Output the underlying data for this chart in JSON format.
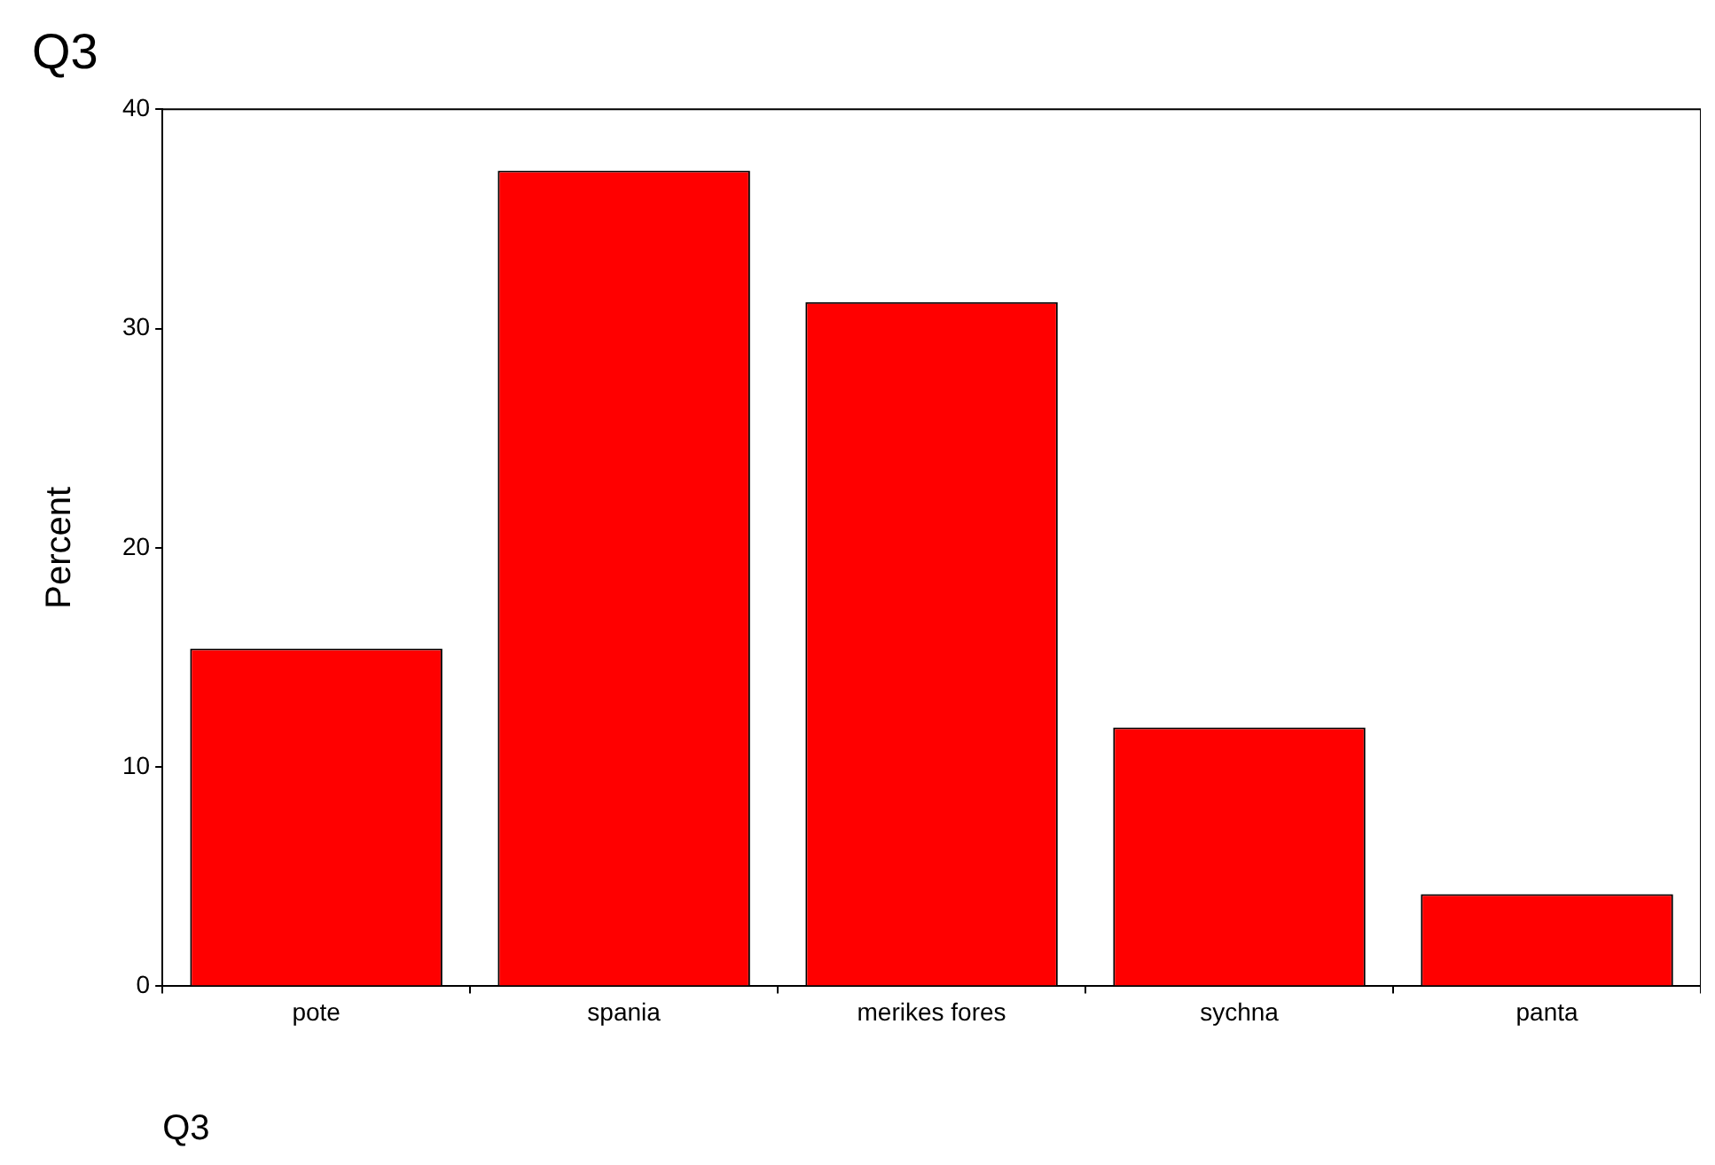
{
  "chart_data": {
    "type": "bar",
    "title": "Q3",
    "xlabel": "Q3",
    "ylabel": "Percent",
    "categories": [
      "pote",
      "spania",
      "merikes fores",
      "sychna",
      "panta"
    ],
    "values": [
      15.4,
      37.2,
      31.2,
      11.8,
      4.2
    ],
    "color": "#ff0000",
    "ylim": [
      0,
      40
    ],
    "yticks": [
      0,
      10,
      20,
      30,
      40
    ],
    "grid": false,
    "legend": false
  }
}
